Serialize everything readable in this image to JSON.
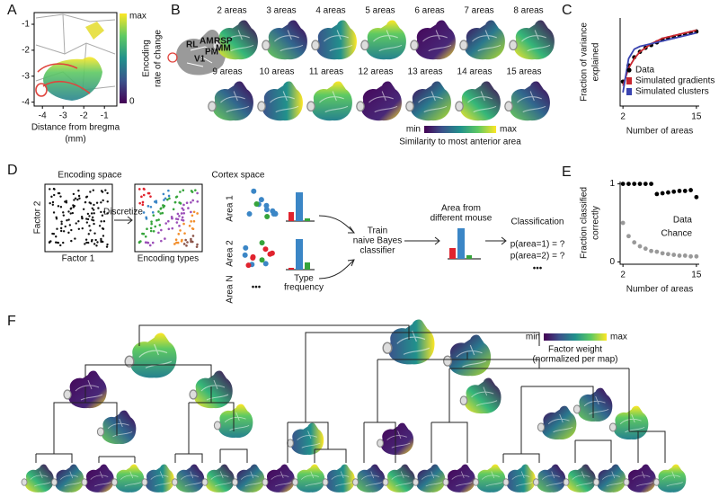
{
  "chart_data": [
    {
      "type": "image",
      "panel": "A",
      "xlabel": [
        "Distance from bregma",
        "(mm)"
      ],
      "xlim": [
        -4.4,
        -0.4
      ],
      "xticks": [
        -4,
        -3,
        -2,
        -1
      ],
      "ylim": [
        -4.15,
        -0.55
      ],
      "yticks": [
        -1,
        -2,
        -3,
        -4
      ],
      "colorbar": {
        "labels": [
          "max",
          "0"
        ],
        "title": [
          "Encoding",
          "rate of change"
        ]
      }
    },
    {
      "type": "scatter",
      "panel": "C",
      "ylabel": [
        "Fraction of variance",
        "explained"
      ],
      "xlabel": "Number of areas",
      "x": [
        2,
        3,
        4,
        5,
        6,
        7,
        8,
        9,
        10,
        11,
        12,
        13,
        14,
        15
      ],
      "xlim": [
        1.5,
        15.5
      ],
      "xticks": [
        2,
        15
      ],
      "ylim": [
        0.2,
        0.85
      ],
      "legend": "lower right",
      "series": [
        {
          "name": "Data",
          "color": "#000000",
          "style": "points",
          "values": [
            0.38,
            0.5,
            0.56,
            0.6,
            0.63,
            0.65,
            0.67,
            0.69,
            0.7,
            0.71,
            0.72,
            0.73,
            0.74,
            0.75
          ]
        },
        {
          "name": "Simulated gradients",
          "color": "#c8262f",
          "style": "line",
          "values": [
            0.35,
            0.48,
            0.55,
            0.6,
            0.63,
            0.66,
            0.68,
            0.7,
            0.71,
            0.72,
            0.73,
            0.74,
            0.75,
            0.76
          ]
        },
        {
          "name": "Simulated clusters",
          "color": "#3a44b0",
          "style": "line",
          "values": [
            0.3,
            0.55,
            0.62,
            0.64,
            0.65,
            0.66,
            0.67,
            0.68,
            0.69,
            0.7,
            0.71,
            0.72,
            0.73,
            0.74
          ]
        }
      ]
    },
    {
      "type": "scatter",
      "panel": "E",
      "ylabel": [
        "Fraction classified",
        "correctly"
      ],
      "xlabel": "Number of areas",
      "x": [
        2,
        3,
        4,
        5,
        6,
        7,
        8,
        9,
        10,
        11,
        12,
        13,
        14,
        15
      ],
      "xlim": [
        1.5,
        15.5
      ],
      "xticks": [
        2,
        15
      ],
      "ylim": [
        -0.03,
        1.03
      ],
      "yticks": [
        0,
        1
      ],
      "legend": "right",
      "series": [
        {
          "name": "Data",
          "color": "#000000",
          "style": "points",
          "values": [
            1,
            1,
            1,
            1,
            1,
            1,
            0.87,
            0.88,
            0.89,
            0.9,
            0.91,
            0.91,
            0.92,
            0.83
          ]
        },
        {
          "name": "Chance",
          "color": "#999999",
          "style": "points",
          "values": [
            0.5,
            0.33,
            0.25,
            0.2,
            0.17,
            0.14,
            0.13,
            0.11,
            0.1,
            0.09,
            0.08,
            0.08,
            0.07,
            0.07
          ]
        }
      ]
    }
  ],
  "panel_b": {
    "panel": "B",
    "maps": [
      "2 areas",
      "3 areas",
      "4 areas",
      "5 areas",
      "6 areas",
      "7 areas",
      "8 areas",
      "9 areas",
      "10 areas",
      "11 areas",
      "12 areas",
      "13 areas",
      "14 areas",
      "15 areas"
    ],
    "schematic_labels": [
      "RL",
      "AM",
      "RSP",
      "MM",
      "PM",
      "V1"
    ],
    "colorbar": {
      "min": "min",
      "max": "max",
      "title": "Similarity to most anterior area"
    }
  },
  "panel_d": {
    "panel": "D",
    "encoding_title": "Encoding space",
    "factor2": "Factor 2",
    "factor1": "Factor 1",
    "discretize": "Discretize",
    "types": "Encoding types",
    "cortex_title": "Cortex space",
    "areas": [
      "Area 1",
      "Area 2",
      "Area N"
    ],
    "more": "•••",
    "type_frequency": [
      "Type",
      "frequency"
    ],
    "train": [
      "Train",
      "naive Bayes",
      "classifier"
    ],
    "new_area": [
      "Area from",
      "different mouse"
    ],
    "classification": "Classification",
    "probabilities": [
      "p(area=1) = ?",
      "p(area=2) = ?"
    ],
    "more_probs": "•••"
  },
  "panel_f": {
    "panel": "F",
    "colorbar": {
      "min": "min",
      "max": "max",
      "title": [
        "Factor weight",
        "(normalized per map)"
      ]
    }
  }
}
